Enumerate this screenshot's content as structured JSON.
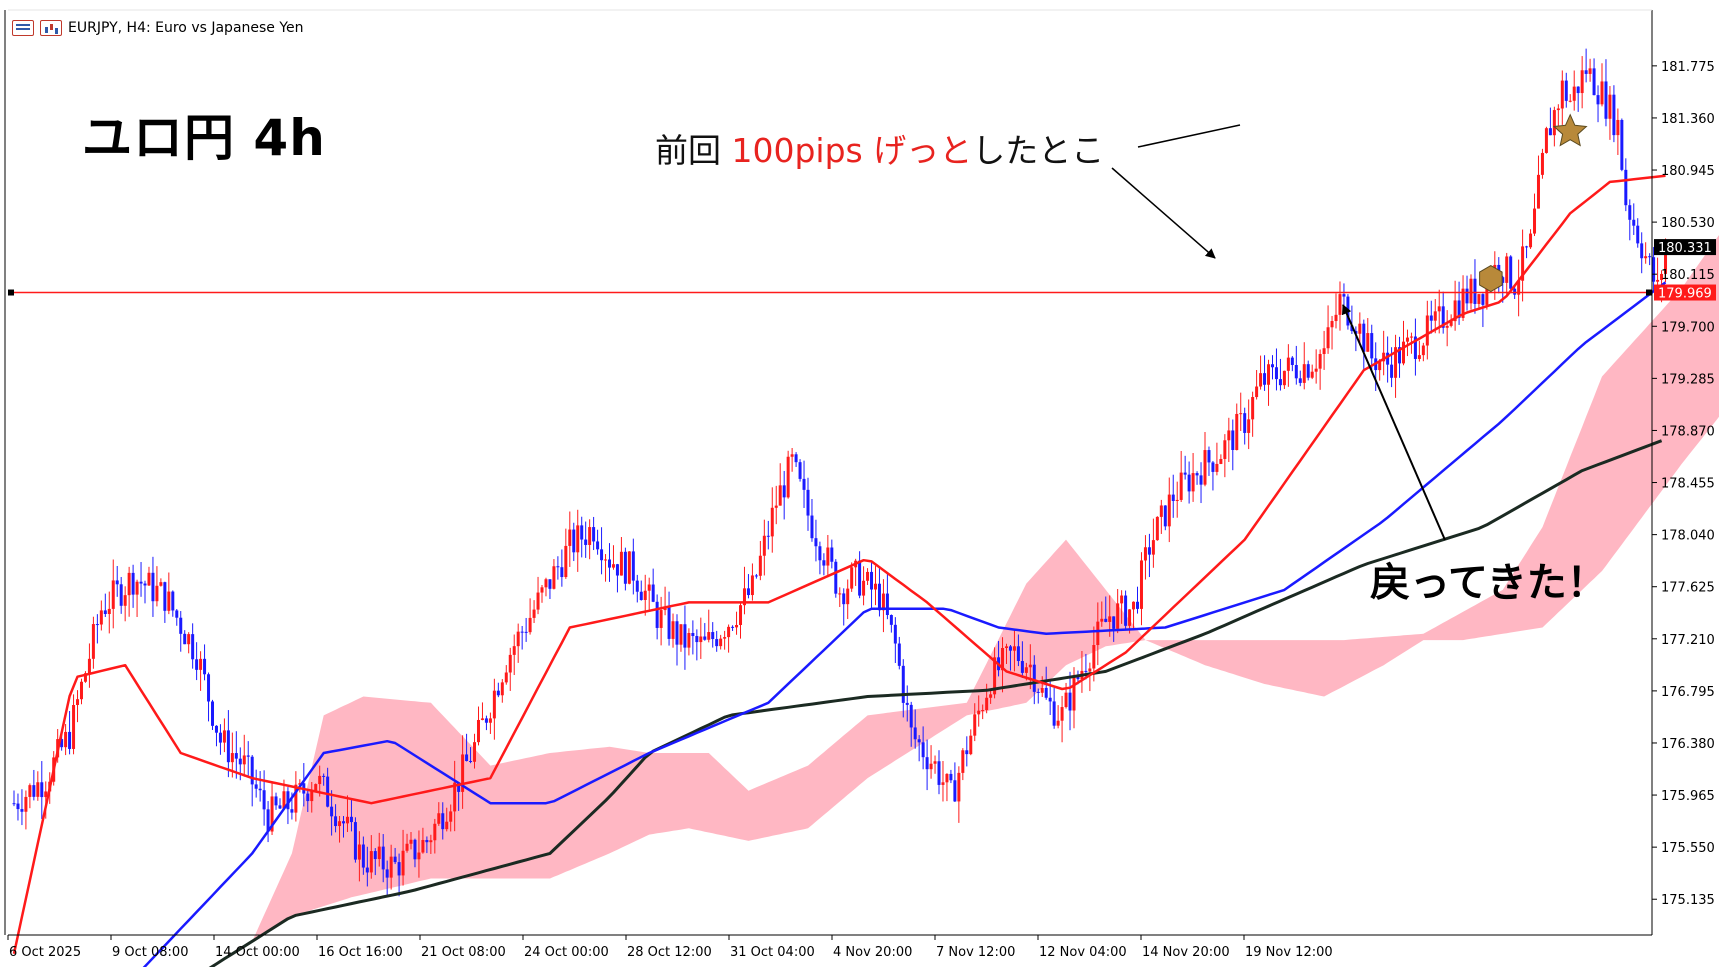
{
  "header": {
    "symbol_line": "EURJPY, H4:  Euro vs Japanese Yen",
    "icons": [
      "menu-list-icon",
      "chart-window-icon"
    ]
  },
  "annotations": {
    "title": "ユロ円 4h",
    "note_prefix": "前回 ",
    "note_highlight": "100pips げっと",
    "note_suffix": "したとこ",
    "returned": "戻ってきた！"
  },
  "colors": {
    "bull": "#ff1a1a",
    "bear": "#1a1aff",
    "ma_fast": "#ff1a1a",
    "ma_mid": "#1a1aff",
    "ma_slow": "#1b2a22",
    "cloud_bull": "#ffb7c3",
    "cloud_bear": "#aeeef0",
    "hline": "#ff1a1a",
    "axis": "#000000",
    "current_price_bg": "#000000",
    "line_price_bg": "#ff1a1a",
    "marker_fill": "#b8893a"
  },
  "chart_data": {
    "type": "candlestick",
    "symbol": "EURJPY",
    "timeframe": "H4",
    "y_ticks": [
      181.775,
      181.36,
      180.945,
      180.53,
      180.115,
      179.7,
      179.285,
      178.87,
      178.455,
      178.04,
      177.625,
      177.21,
      176.795,
      176.38,
      175.965,
      175.55,
      175.135
    ],
    "y_range": [
      174.85,
      182.22
    ],
    "x_ticks": [
      "6 Oct 2025",
      "9 Oct 08:00",
      "14 Oct 00:00",
      "16 Oct 16:00",
      "21 Oct 08:00",
      "24 Oct 00:00",
      "28 Oct 12:00",
      "31 Oct 04:00",
      "4 Nov 20:00",
      "7 Nov 12:00",
      "12 Nov 04:00",
      "14 Nov 20:00",
      "19 Nov 12:00"
    ],
    "current_price": "180.331",
    "horizontal_line_price": "179.969",
    "horizontal_line_value": 179.969,
    "close_path": [
      [
        0,
        175.9
      ],
      [
        8,
        176.1
      ],
      [
        14,
        176.45
      ],
      [
        22,
        177.45
      ],
      [
        30,
        177.7
      ],
      [
        38,
        177.55
      ],
      [
        46,
        177.1
      ],
      [
        52,
        176.4
      ],
      [
        58,
        176.2
      ],
      [
        64,
        175.8
      ],
      [
        70,
        175.9
      ],
      [
        76,
        176.1
      ],
      [
        82,
        175.8
      ],
      [
        88,
        175.45
      ],
      [
        96,
        175.4
      ],
      [
        104,
        175.6
      ],
      [
        110,
        175.95
      ],
      [
        116,
        176.35
      ],
      [
        124,
        177.05
      ],
      [
        132,
        177.5
      ],
      [
        140,
        177.95
      ],
      [
        146,
        178.1
      ],
      [
        150,
        177.85
      ],
      [
        156,
        177.75
      ],
      [
        162,
        177.4
      ],
      [
        168,
        177.2
      ],
      [
        174,
        177.15
      ],
      [
        180,
        177.35
      ],
      [
        186,
        177.6
      ],
      [
        192,
        178.3
      ],
      [
        196,
        178.6
      ],
      [
        200,
        178.2
      ],
      [
        204,
        177.9
      ],
      [
        208,
        177.6
      ],
      [
        212,
        177.7
      ],
      [
        218,
        177.55
      ],
      [
        222,
        177.15
      ],
      [
        226,
        176.45
      ],
      [
        232,
        176.2
      ],
      [
        236,
        175.95
      ],
      [
        240,
        176.35
      ],
      [
        246,
        176.9
      ],
      [
        252,
        177.1
      ],
      [
        256,
        177.0
      ],
      [
        260,
        176.7
      ],
      [
        264,
        176.6
      ],
      [
        270,
        177.05
      ],
      [
        276,
        177.4
      ],
      [
        282,
        177.45
      ],
      [
        286,
        177.95
      ],
      [
        292,
        178.35
      ],
      [
        298,
        178.55
      ],
      [
        304,
        178.7
      ],
      [
        310,
        178.95
      ],
      [
        314,
        179.25
      ],
      [
        320,
        179.35
      ],
      [
        326,
        179.4
      ],
      [
        330,
        179.5
      ],
      [
        334,
        179.9
      ],
      [
        338,
        179.75
      ],
      [
        342,
        179.45
      ],
      [
        346,
        179.4
      ],
      [
        352,
        179.55
      ],
      [
        358,
        179.7
      ],
      [
        362,
        179.85
      ],
      [
        366,
        179.95
      ],
      [
        370,
        180.0
      ],
      [
        374,
        180.2
      ],
      [
        378,
        180.05
      ],
      [
        382,
        180.35
      ],
      [
        386,
        181.2
      ],
      [
        390,
        181.6
      ],
      [
        392,
        181.5
      ],
      [
        396,
        181.75
      ],
      [
        400,
        181.55
      ],
      [
        404,
        181.3
      ],
      [
        406,
        180.7
      ],
      [
        410,
        180.35
      ],
      [
        414,
        179.98
      ],
      [
        416,
        180.33
      ]
    ],
    "ma_fast_series": [
      [
        0,
        174.7
      ],
      [
        15,
        176.9
      ],
      [
        28,
        177.0
      ],
      [
        42,
        176.3
      ],
      [
        60,
        176.1
      ],
      [
        90,
        175.9
      ],
      [
        120,
        176.1
      ],
      [
        140,
        177.3
      ],
      [
        170,
        177.5
      ],
      [
        190,
        177.5
      ],
      [
        215,
        177.85
      ],
      [
        230,
        177.5
      ],
      [
        250,
        176.95
      ],
      [
        265,
        176.8
      ],
      [
        280,
        177.1
      ],
      [
        310,
        178.0
      ],
      [
        340,
        179.35
      ],
      [
        365,
        179.8
      ],
      [
        375,
        179.9
      ],
      [
        392,
        180.6
      ],
      [
        402,
        180.85
      ],
      [
        416,
        180.9
      ]
    ],
    "ma_mid_series": [
      [
        30,
        174.5
      ],
      [
        60,
        175.5
      ],
      [
        78,
        176.3
      ],
      [
        95,
        176.4
      ],
      [
        120,
        175.9
      ],
      [
        135,
        175.9
      ],
      [
        160,
        176.3
      ],
      [
        190,
        176.7
      ],
      [
        215,
        177.45
      ],
      [
        235,
        177.45
      ],
      [
        248,
        177.3
      ],
      [
        260,
        177.25
      ],
      [
        290,
        177.3
      ],
      [
        320,
        177.6
      ],
      [
        345,
        178.15
      ],
      [
        375,
        178.95
      ],
      [
        395,
        179.55
      ],
      [
        416,
        180.05
      ]
    ],
    "ma_slow_series": [
      [
        45,
        174.5
      ],
      [
        70,
        175.0
      ],
      [
        100,
        175.2
      ],
      [
        135,
        175.5
      ],
      [
        150,
        175.95
      ],
      [
        160,
        176.3
      ],
      [
        180,
        176.6
      ],
      [
        215,
        176.75
      ],
      [
        245,
        176.8
      ],
      [
        275,
        176.95
      ],
      [
        300,
        177.25
      ],
      [
        340,
        177.8
      ],
      [
        370,
        178.1
      ],
      [
        395,
        178.55
      ],
      [
        416,
        178.8
      ]
    ],
    "cloud_upper": [
      [
        60,
        174.8
      ],
      [
        70,
        175.5
      ],
      [
        78,
        176.6
      ],
      [
        88,
        176.75
      ],
      [
        105,
        176.7
      ],
      [
        120,
        176.2
      ],
      [
        135,
        176.3
      ],
      [
        150,
        176.35
      ],
      [
        160,
        176.3
      ],
      [
        175,
        176.3
      ],
      [
        185,
        176.0
      ],
      [
        200,
        176.2
      ],
      [
        215,
        176.6
      ],
      [
        240,
        176.7
      ],
      [
        255,
        177.65
      ],
      [
        265,
        178.0
      ],
      [
        275,
        177.6
      ],
      [
        285,
        177.2
      ],
      [
        300,
        177.2
      ],
      [
        315,
        177.2
      ],
      [
        335,
        177.2
      ],
      [
        355,
        177.25
      ],
      [
        375,
        177.6
      ],
      [
        385,
        178.1
      ],
      [
        400,
        179.3
      ],
      [
        420,
        180.0
      ],
      [
        440,
        180.9
      ],
      [
        450,
        181.0
      ],
      [
        460,
        180.9
      ]
    ],
    "cloud_lower": [
      [
        60,
        174.8
      ],
      [
        70,
        175.0
      ],
      [
        85,
        175.15
      ],
      [
        105,
        175.3
      ],
      [
        125,
        175.3
      ],
      [
        135,
        175.3
      ],
      [
        150,
        175.5
      ],
      [
        160,
        175.65
      ],
      [
        170,
        175.7
      ],
      [
        185,
        175.6
      ],
      [
        200,
        175.7
      ],
      [
        215,
        176.1
      ],
      [
        240,
        176.6
      ],
      [
        255,
        176.7
      ],
      [
        265,
        177.0
      ],
      [
        275,
        177.15
      ],
      [
        285,
        177.2
      ],
      [
        300,
        177.0
      ],
      [
        315,
        176.85
      ],
      [
        330,
        176.75
      ],
      [
        345,
        177.0
      ],
      [
        355,
        177.2
      ],
      [
        365,
        177.2
      ],
      [
        385,
        177.3
      ],
      [
        400,
        177.75
      ],
      [
        420,
        178.6
      ],
      [
        440,
        179.4
      ],
      [
        450,
        179.9
      ],
      [
        460,
        180.1
      ]
    ],
    "marker_star_value": 181.25,
    "marker_hex_value": 180.08
  }
}
